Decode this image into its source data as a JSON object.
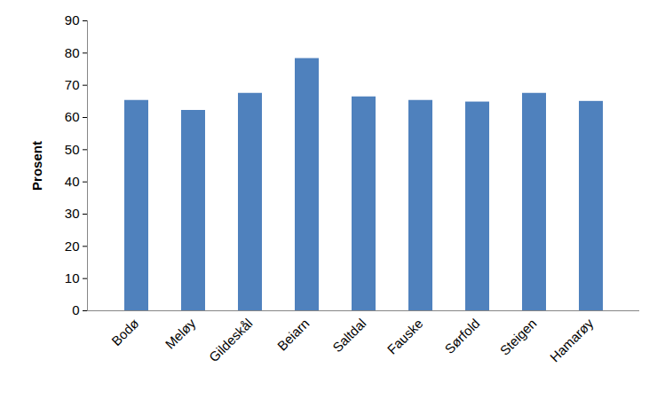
{
  "chart_data": {
    "type": "bar",
    "y_label": "Prosent",
    "categories": [
      "Bodø",
      "Meløy",
      "Gildeskål",
      "Beiarn",
      "Saltdal",
      "Fauske",
      "Sørfold",
      "Steigen",
      "Hamarøy"
    ],
    "values": [
      65.3,
      62.2,
      67.5,
      78.3,
      66.4,
      65.3,
      64.8,
      67.5,
      65.0
    ],
    "color": "#4f81bd",
    "ylim": [
      0,
      90
    ],
    "yticks": [
      0,
      10,
      20,
      30,
      40,
      50,
      60,
      70,
      80,
      90
    ],
    "grid": false
  }
}
